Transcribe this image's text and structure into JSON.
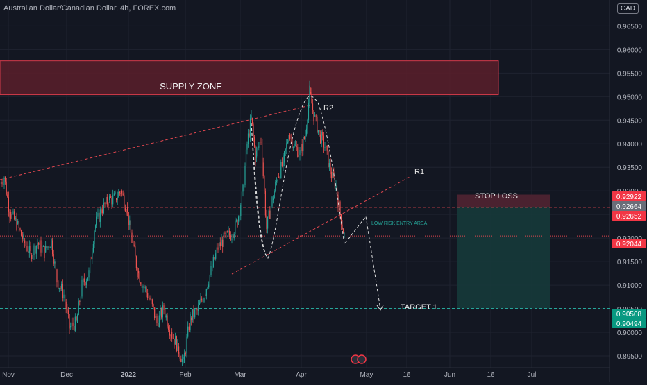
{
  "header": {
    "title": "Australian Dollar/Canadian Dollar, 4h, FOREX.com",
    "currency": "CAD"
  },
  "colors": {
    "background": "#131722",
    "grid": "#1f2330",
    "up": "#26a69a",
    "down": "#ef5350",
    "supply_fill": "#5a1f2a",
    "supply_border": "#d33a4a",
    "stop_fill": "#4a2230",
    "target_fill": "#163a3a",
    "annotation": "#e0e0e0",
    "red_dash": "#e2474f",
    "green_dash": "#26a69a"
  },
  "chart_data": {
    "type": "candlestick",
    "title": "Australian Dollar/Canadian Dollar, 4h, FOREX.com",
    "y_axis": {
      "range": [
        0.8925,
        0.9705
      ],
      "ticks": [
        "0.89500",
        "0.90000",
        "0.90500",
        "0.91000",
        "0.91500",
        "0.92000",
        "0.92500",
        "0.93000",
        "0.93500",
        "0.94000",
        "0.94500",
        "0.95000",
        "0.95500",
        "0.96000",
        "0.96500"
      ]
    },
    "x_axis": {
      "ticks": [
        "Nov",
        "Dec",
        "2022",
        "Feb",
        "Mar",
        "Apr",
        "May",
        "16",
        "Jun",
        "16",
        "Jul"
      ]
    },
    "price_path": [
      [
        0,
        0.9315
      ],
      [
        6,
        0.933
      ],
      [
        14,
        0.9255
      ],
      [
        24,
        0.923
      ],
      [
        34,
        0.9195
      ],
      [
        44,
        0.9165
      ],
      [
        54,
        0.919
      ],
      [
        64,
        0.917
      ],
      [
        74,
        0.9195
      ],
      [
        82,
        0.911
      ],
      [
        92,
        0.908
      ],
      [
        100,
        0.901
      ],
      [
        110,
        0.902
      ],
      [
        118,
        0.91
      ],
      [
        128,
        0.9125
      ],
      [
        136,
        0.922
      ],
      [
        146,
        0.926
      ],
      [
        156,
        0.928
      ],
      [
        166,
        0.9285
      ],
      [
        174,
        0.93
      ],
      [
        182,
        0.9265
      ],
      [
        190,
        0.9195
      ],
      [
        198,
        0.913
      ],
      [
        206,
        0.91
      ],
      [
        216,
        0.907
      ],
      [
        226,
        0.902
      ],
      [
        236,
        0.905
      ],
      [
        246,
        0.9
      ],
      [
        256,
        0.897
      ],
      [
        264,
        0.8935
      ],
      [
        274,
        0.903
      ],
      [
        284,
        0.9045
      ],
      [
        294,
        0.908
      ],
      [
        304,
        0.913
      ],
      [
        314,
        0.918
      ],
      [
        324,
        0.92
      ],
      [
        334,
        0.921
      ],
      [
        342,
        0.9235
      ],
      [
        350,
        0.93
      ],
      [
        356,
        0.94
      ],
      [
        362,
        0.9455
      ],
      [
        368,
        0.937
      ],
      [
        376,
        0.941
      ],
      [
        384,
        0.922
      ],
      [
        392,
        0.928
      ],
      [
        400,
        0.933
      ],
      [
        408,
        0.936
      ],
      [
        416,
        0.942
      ],
      [
        424,
        0.9395
      ],
      [
        432,
        0.938
      ],
      [
        440,
        0.942
      ],
      [
        446,
        0.951
      ],
      [
        452,
        0.946
      ],
      [
        460,
        0.942
      ],
      [
        468,
        0.9395
      ],
      [
        476,
        0.934
      ],
      [
        484,
        0.931
      ],
      [
        490,
        0.925
      ],
      [
        496,
        0.9205
      ]
    ],
    "zones": [
      {
        "name": "SUPPLY ZONE",
        "price_low": 0.9504,
        "price_high": 0.9576,
        "x_from": 0,
        "x_to": 718
      },
      {
        "name": "STOP LOSS",
        "price_low": 0.92652,
        "price_high": 0.92922,
        "x_from": 659,
        "x_to": 792
      },
      {
        "name": "TARGET 1",
        "price_low": 0.90508,
        "price_high": 0.92652,
        "x_from": 659,
        "x_to": 792
      }
    ],
    "levels": [
      {
        "price": 0.92652,
        "style": "red-dashed"
      },
      {
        "price": 0.92044,
        "style": "red-dotted"
      },
      {
        "price": 0.90508,
        "style": "green-dashed"
      }
    ],
    "annotations": [
      {
        "text": "SUPPLY ZONE"
      },
      {
        "text": "R2"
      },
      {
        "text": "R1"
      },
      {
        "text": "STOP LOSS"
      },
      {
        "text": "LOW RISK ENTRY AREA"
      },
      {
        "text": "TARGET 1"
      }
    ],
    "price_tags": [
      {
        "label": "0.92922",
        "color": "#f23645"
      },
      {
        "label": "0.92664",
        "color": "#6a6d78"
      },
      {
        "label": "0.92652",
        "color": "#f23645"
      },
      {
        "label": "0.92044",
        "color": "#f23645"
      },
      {
        "label": "0.90508",
        "color": "#089981"
      },
      {
        "label": "0.90494",
        "color": "#089981"
      }
    ]
  }
}
